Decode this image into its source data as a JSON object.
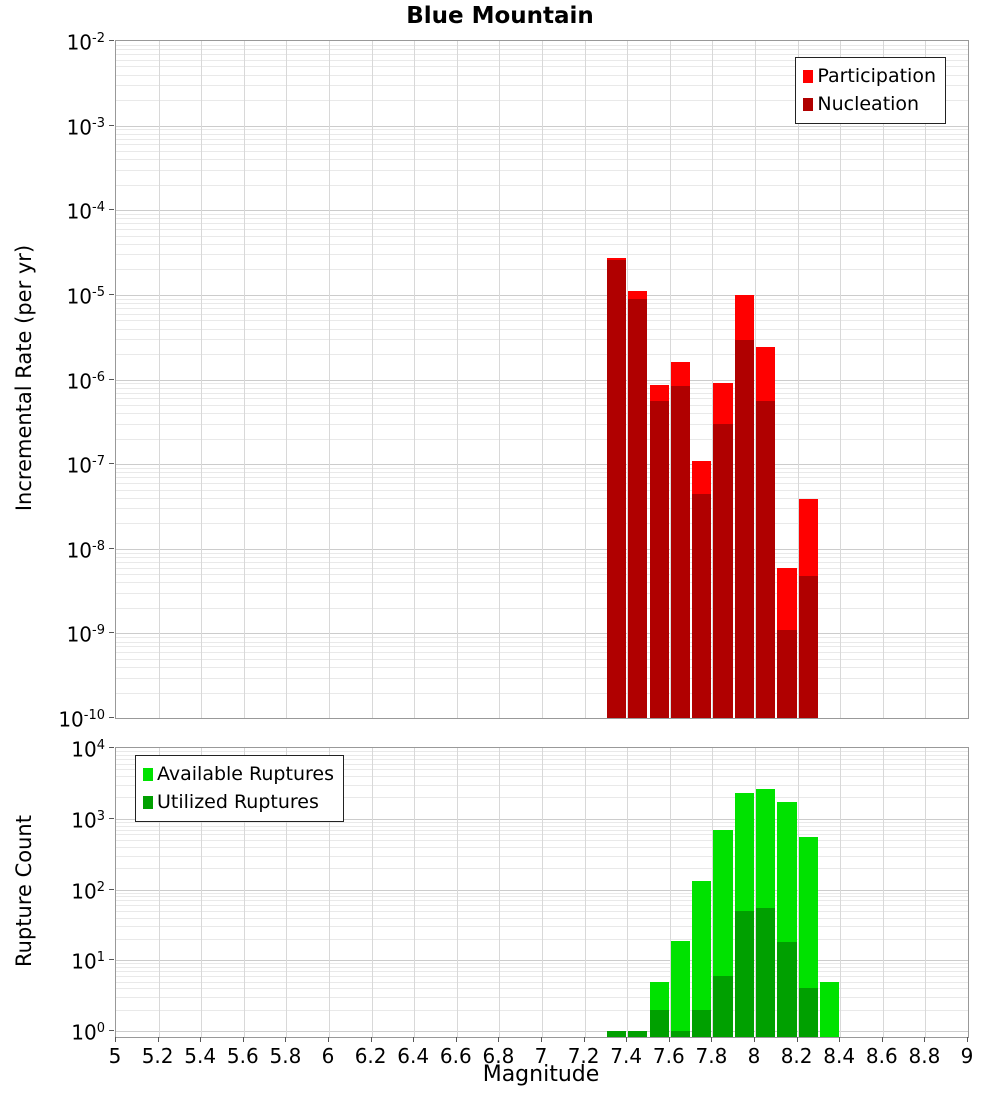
{
  "title": "Blue Mountain",
  "xlabel": "Magnitude",
  "x_tick_labels": [
    "5",
    "5.2",
    "5.4",
    "5.6",
    "5.8",
    "6",
    "6.2",
    "6.4",
    "6.6",
    "6.8",
    "7",
    "7.2",
    "7.4",
    "7.6",
    "7.8",
    "8",
    "8.2",
    "8.4",
    "8.6",
    "8.8",
    "9"
  ],
  "chart_data": [
    {
      "type": "bar",
      "title": "Blue Mountain",
      "ylabel": "Incremental Rate (per yr)",
      "xlabel": "Magnitude",
      "xlim": [
        5,
        9
      ],
      "ylog": true,
      "ylim": [
        1e-10,
        0.01
      ],
      "grid": true,
      "y_tick_exponents": [
        -2,
        -3,
        -4,
        -5,
        -6,
        -7,
        -8,
        -9,
        -10
      ],
      "bin_width": 0.1,
      "categories": [
        7.35,
        7.45,
        7.55,
        7.65,
        7.75,
        7.85,
        7.95,
        8.05,
        8.15,
        8.25
      ],
      "legend_position": "top-right",
      "series": [
        {
          "name": "Participation",
          "color": "#ff0000",
          "values": [
            2.7e-05,
            1.1e-05,
            8.6e-07,
            1.6e-06,
            1.1e-07,
            9.2e-07,
            1e-05,
            2.4e-06,
            6e-09,
            3.9e-08
          ]
        },
        {
          "name": "Nucleation",
          "color": "#b00000",
          "values": [
            2.6e-05,
            9e-06,
            5.6e-07,
            8.3e-07,
            4.4e-08,
            3e-07,
            2.9e-06,
            5.5e-07,
            1.1e-09,
            4.8e-09
          ]
        }
      ]
    },
    {
      "type": "bar",
      "title": "",
      "ylabel": "Rupture Count",
      "xlabel": "Magnitude",
      "xlim": [
        5,
        9
      ],
      "ylog": true,
      "ylim": [
        1,
        10000.0
      ],
      "grid": true,
      "y_tick_exponents": [
        4,
        3,
        2,
        1,
        0
      ],
      "bin_width": 0.1,
      "categories": [
        7.35,
        7.45,
        7.55,
        7.65,
        7.75,
        7.85,
        7.95,
        8.05,
        8.15,
        8.25,
        8.35
      ],
      "legend_position": "top-left",
      "series": [
        {
          "name": "Available Ruptures",
          "color": "#00e200",
          "values": [
            1,
            1,
            5,
            19,
            130,
            700,
            2300,
            2600,
            1700,
            550,
            5
          ]
        },
        {
          "name": "Utilized Ruptures",
          "color": "#00a000",
          "values": [
            1,
            1,
            2,
            1,
            2,
            6,
            50,
            55,
            18,
            4,
            0
          ]
        }
      ]
    }
  ]
}
